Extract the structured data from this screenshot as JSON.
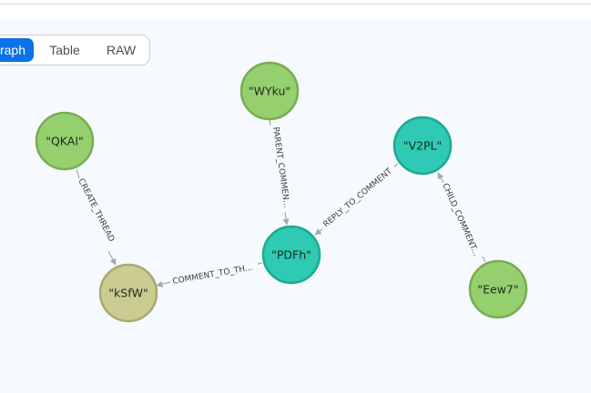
{
  "view_tabs": {
    "graph": "raph",
    "table": "Table",
    "raw": "RAW"
  },
  "nodes": {
    "wyku": {
      "label": "\"WYku\"",
      "fill": "#96cf6e",
      "stroke": "#78ad52"
    },
    "qkai": {
      "label": "\"QKAI\"",
      "fill": "#96cf6e",
      "stroke": "#78ad52"
    },
    "v2pl": {
      "label": "\"V2PL\"",
      "fill": "#2ecab3",
      "stroke": "#1fa892"
    },
    "pdfh": {
      "label": "\"PDFh\"",
      "fill": "#2ecab3",
      "stroke": "#1fa892"
    },
    "ksfw": {
      "label": "\"kSfW\"",
      "fill": "#cccc92",
      "stroke": "#a8aa6a"
    },
    "eew7": {
      "label": "\"Eew7\"",
      "fill": "#96cf6e",
      "stroke": "#78ad52"
    }
  },
  "edges": {
    "create_thread": "CREATE_THREAD",
    "parent_comment": "PARENT_COMMEN...",
    "reply_to_comment": "REPLY_TO_COMMENT",
    "child_comment": "CHILD_COMMENT...",
    "comment_to_thread": "COMMENT_TO_TH..."
  },
  "colors": {
    "edge": "#a3a8b0",
    "accent": "#0b72e7"
  }
}
